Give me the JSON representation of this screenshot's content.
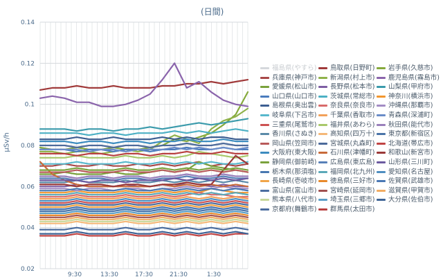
{
  "chart_data": {
    "type": "line",
    "title": "(日間)",
    "ylabel": "μSv/h",
    "ylim": [
      0.02,
      0.14
    ],
    "y_ticks": [
      "0.02",
      "0.04",
      "0.06",
      "0.08",
      "0.1",
      "0.12",
      "0.14"
    ],
    "x_ticks": [
      "9:30",
      "13:30",
      "17:30",
      "21:30",
      "1:30"
    ],
    "legend_placement": "right",
    "grid": true,
    "series": [
      {
        "name": "福島県(やすら)",
        "color": "#bcc3ca",
        "hidden": true,
        "values": []
      },
      {
        "name": "鳥取県(日野町)",
        "color": "#a03a3a",
        "values": [
          0.107,
          0.108,
          0.108,
          0.109,
          0.108,
          0.108,
          0.109,
          0.108,
          0.108,
          0.108,
          0.109,
          0.109,
          0.11,
          0.11,
          0.111,
          0.11,
          0.111,
          0.112
        ]
      },
      {
        "name": "岩手県(久慈市)",
        "color": "#85a93b",
        "values": [
          0.079,
          0.078,
          0.078,
          0.079,
          0.078,
          0.078,
          0.079,
          0.078,
          0.078,
          0.079,
          0.08,
          0.083,
          0.082,
          0.084,
          0.086,
          0.09,
          0.095,
          0.106
        ]
      },
      {
        "name": "兵庫県(神戸市)",
        "color": "#a84848",
        "values": [
          0.07,
          0.07,
          0.071,
          0.07,
          0.07,
          0.071,
          0.07,
          0.07,
          0.071,
          0.07,
          0.071,
          0.07,
          0.071,
          0.072,
          0.07,
          0.071,
          0.07,
          0.071
        ]
      },
      {
        "name": "新潟県(村上市)",
        "color": "#8fb24a",
        "values": [
          0.077,
          0.077,
          0.076,
          0.077,
          0.077,
          0.076,
          0.077,
          0.078,
          0.077,
          0.078,
          0.082,
          0.085,
          0.083,
          0.081,
          0.088,
          0.092,
          0.094,
          0.098
        ]
      },
      {
        "name": "鹿児島県(霧島市)",
        "color": "#8a64ab",
        "values": [
          0.103,
          0.104,
          0.103,
          0.101,
          0.101,
          0.099,
          0.099,
          0.1,
          0.102,
          0.105,
          0.112,
          0.12,
          0.108,
          0.111,
          0.106,
          0.102,
          0.1,
          0.099
        ]
      },
      {
        "name": "愛媛県(松山市)",
        "color": "#7aa23c",
        "values": [
          0.066,
          0.066,
          0.067,
          0.066,
          0.066,
          0.066,
          0.067,
          0.066,
          0.066,
          0.067,
          0.068,
          0.067,
          0.068,
          0.072,
          0.07,
          0.069,
          0.068,
          0.067
        ]
      },
      {
        "name": "長野県(松本市)",
        "color": "#7e5ea3",
        "values": [
          0.06,
          0.06,
          0.06,
          0.061,
          0.06,
          0.06,
          0.06,
          0.061,
          0.06,
          0.06,
          0.061,
          0.06,
          0.062,
          0.061,
          0.06,
          0.061,
          0.06,
          0.06
        ]
      },
      {
        "name": "山梨県(甲府市)",
        "color": "#3a9aab",
        "values": [
          0.088,
          0.088,
          0.088,
          0.087,
          0.088,
          0.088,
          0.087,
          0.088,
          0.088,
          0.089,
          0.088,
          0.089,
          0.09,
          0.091,
          0.09,
          0.091,
          0.092,
          0.093
        ]
      },
      {
        "name": "山口県(山口市)",
        "color": "#4a7bbd",
        "values": [
          0.078,
          0.078,
          0.078,
          0.077,
          0.078,
          0.078,
          0.077,
          0.078,
          0.078,
          0.077,
          0.078,
          0.078,
          0.079,
          0.078,
          0.078,
          0.079,
          0.078,
          0.078
        ]
      },
      {
        "name": "茨城県(常総市)",
        "color": "#4cb0c4",
        "values": [
          0.086,
          0.086,
          0.086,
          0.086,
          0.085,
          0.086,
          0.086,
          0.085,
          0.086,
          0.086,
          0.086,
          0.087,
          0.086,
          0.087,
          0.086,
          0.087,
          0.088,
          0.087
        ]
      },
      {
        "name": "神奈川(横浜市)",
        "color": "#f2962e",
        "values": [
          0.057,
          0.057,
          0.057,
          0.058,
          0.057,
          0.057,
          0.057,
          0.058,
          0.057,
          0.057,
          0.058,
          0.057,
          0.058,
          0.057,
          0.059,
          0.058,
          0.057,
          0.057
        ]
      },
      {
        "name": "島根県(奥出雲)",
        "color": "#3c5e91",
        "values": [
          0.083,
          0.083,
          0.083,
          0.084,
          0.083,
          0.083,
          0.084,
          0.083,
          0.083,
          0.083,
          0.084,
          0.083,
          0.084,
          0.083,
          0.084,
          0.084,
          0.083,
          0.083
        ]
      },
      {
        "name": "奈良県(奈良市)",
        "color": "#d86a6a",
        "values": [
          0.055,
          0.055,
          0.055,
          0.056,
          0.055,
          0.055,
          0.055,
          0.056,
          0.055,
          0.055,
          0.056,
          0.055,
          0.056,
          0.057,
          0.056,
          0.056,
          0.055,
          0.055
        ]
      },
      {
        "name": "沖縄県(那覇市)",
        "color": "#a38cc4",
        "values": [
          0.059,
          0.059,
          0.059,
          0.058,
          0.059,
          0.059,
          0.058,
          0.059,
          0.059,
          0.058,
          0.059,
          0.059,
          0.06,
          0.059,
          0.059,
          0.06,
          0.059,
          0.059
        ]
      },
      {
        "name": "岐阜県(下呂市)",
        "color": "#58b8cc",
        "values": [
          0.071,
          0.071,
          0.071,
          0.072,
          0.071,
          0.071,
          0.071,
          0.072,
          0.071,
          0.071,
          0.072,
          0.071,
          0.072,
          0.071,
          0.072,
          0.071,
          0.071,
          0.072
        ]
      },
      {
        "name": "千葉県(香取市)",
        "color": "#f2a15a",
        "values": [
          0.054,
          0.054,
          0.054,
          0.055,
          0.054,
          0.054,
          0.054,
          0.055,
          0.054,
          0.054,
          0.055,
          0.054,
          0.055,
          0.054,
          0.055,
          0.054,
          0.055,
          0.054
        ]
      },
      {
        "name": "青森県(深浦町)",
        "color": "#6a8cc8",
        "values": [
          0.078,
          0.078,
          0.078,
          0.078,
          0.077,
          0.078,
          0.078,
          0.077,
          0.078,
          0.078,
          0.078,
          0.079,
          0.078,
          0.079,
          0.078,
          0.079,
          0.078,
          0.079
        ]
      },
      {
        "name": "三重県(尾鷲市)",
        "color": "#cc5252",
        "values": [
          0.052,
          0.052,
          0.052,
          0.053,
          0.052,
          0.052,
          0.052,
          0.053,
          0.052,
          0.052,
          0.053,
          0.052,
          0.053,
          0.052,
          0.053,
          0.052,
          0.053,
          0.052
        ]
      },
      {
        "name": "福井県(あわら)",
        "color": "#a8c86a",
        "values": [
          0.074,
          0.074,
          0.074,
          0.075,
          0.074,
          0.074,
          0.074,
          0.075,
          0.074,
          0.074,
          0.075,
          0.074,
          0.075,
          0.077,
          0.076,
          0.075,
          0.074,
          0.075
        ]
      },
      {
        "name": "秋田県(能代市)",
        "color": "#9a80bb",
        "values": [
          0.065,
          0.065,
          0.065,
          0.064,
          0.065,
          0.065,
          0.064,
          0.065,
          0.065,
          0.064,
          0.065,
          0.065,
          0.066,
          0.065,
          0.065,
          0.066,
          0.065,
          0.065
        ]
      },
      {
        "name": "香川県(さぬき)",
        "color": "#5a8aa8",
        "values": [
          0.062,
          0.062,
          0.062,
          0.063,
          0.062,
          0.062,
          0.062,
          0.063,
          0.062,
          0.062,
          0.063,
          0.062,
          0.063,
          0.062,
          0.063,
          0.062,
          0.063,
          0.062
        ]
      },
      {
        "name": "高知県(四万十)",
        "color": "#f5b878",
        "values": [
          0.042,
          0.042,
          0.042,
          0.043,
          0.042,
          0.042,
          0.042,
          0.043,
          0.042,
          0.042,
          0.043,
          0.042,
          0.043,
          0.042,
          0.043,
          0.042,
          0.043,
          0.042
        ]
      },
      {
        "name": "東京都(新宿区)",
        "color": "#4a74a8",
        "values": [
          0.048,
          0.048,
          0.048,
          0.049,
          0.048,
          0.048,
          0.048,
          0.049,
          0.048,
          0.048,
          0.049,
          0.048,
          0.049,
          0.048,
          0.049,
          0.048,
          0.049,
          0.048
        ]
      },
      {
        "name": "岡山県(笠岡市)",
        "color": "#b85a5a",
        "values": [
          0.067,
          0.067,
          0.067,
          0.068,
          0.067,
          0.067,
          0.067,
          0.068,
          0.067,
          0.067,
          0.068,
          0.067,
          0.068,
          0.067,
          0.068,
          0.067,
          0.068,
          0.067
        ]
      },
      {
        "name": "宮城県(丸森町)",
        "color": "#4c6a9a",
        "values": [
          0.08,
          0.08,
          0.08,
          0.079,
          0.08,
          0.08,
          0.079,
          0.08,
          0.08,
          0.079,
          0.08,
          0.08,
          0.081,
          0.08,
          0.08,
          0.081,
          0.08,
          0.08
        ]
      },
      {
        "name": "北海道(帯広市)",
        "color": "#c04444",
        "values": [
          0.036,
          0.036,
          0.036,
          0.037,
          0.036,
          0.036,
          0.036,
          0.037,
          0.036,
          0.036,
          0.037,
          0.036,
          0.037,
          0.036,
          0.037,
          0.036,
          0.037,
          0.037
        ]
      },
      {
        "name": "大阪府(東大阪)",
        "color": "#3c8cbf",
        "values": [
          0.082,
          0.082,
          0.082,
          0.081,
          0.082,
          0.082,
          0.081,
          0.082,
          0.082,
          0.081,
          0.082,
          0.082,
          0.083,
          0.082,
          0.082,
          0.083,
          0.082,
          0.082
        ]
      },
      {
        "name": "石川県(津幡町)",
        "color": "#c86a3a",
        "values": [
          0.072,
          0.066,
          0.063,
          0.061,
          0.06,
          0.06,
          0.06,
          0.06,
          0.06,
          0.06,
          0.061,
          0.06,
          0.061,
          0.06,
          0.061,
          0.06,
          0.061,
          0.06
        ]
      },
      {
        "name": "和歌山(新宮市)",
        "color": "#9a3838",
        "values": [
          0.061,
          0.061,
          0.061,
          0.06,
          0.061,
          0.061,
          0.06,
          0.061,
          0.061,
          0.06,
          0.061,
          0.061,
          0.062,
          0.061,
          0.061,
          0.068,
          0.075,
          0.071
        ]
      },
      {
        "name": "静岡県(御前崎)",
        "color": "#7aa23c",
        "values": [
          0.068,
          0.068,
          0.068,
          0.069,
          0.068,
          0.068,
          0.068,
          0.069,
          0.068,
          0.068,
          0.069,
          0.068,
          0.069,
          0.068,
          0.069,
          0.068,
          0.069,
          0.068
        ]
      },
      {
        "name": "広島県(東広島)",
        "color": "#5880b8",
        "values": [
          0.064,
          0.064,
          0.064,
          0.063,
          0.064,
          0.064,
          0.063,
          0.064,
          0.064,
          0.063,
          0.064,
          0.064,
          0.065,
          0.064,
          0.064,
          0.065,
          0.064,
          0.064
        ]
      },
      {
        "name": "山形県(三川町)",
        "color": "#6c5aa0",
        "values": [
          0.063,
          0.063,
          0.063,
          0.063,
          0.062,
          0.063,
          0.063,
          0.062,
          0.063,
          0.063,
          0.063,
          0.064,
          0.063,
          0.064,
          0.063,
          0.064,
          0.063,
          0.064
        ]
      },
      {
        "name": "栃木県(那須塩)",
        "color": "#4878b0",
        "values": [
          0.058,
          0.058,
          0.058,
          0.059,
          0.058,
          0.058,
          0.058,
          0.059,
          0.058,
          0.058,
          0.059,
          0.058,
          0.059,
          0.058,
          0.059,
          0.058,
          0.059,
          0.058
        ]
      },
      {
        "name": "福岡県(北九州)",
        "color": "#5aa8b8",
        "values": [
          0.056,
          0.056,
          0.056,
          0.057,
          0.056,
          0.056,
          0.056,
          0.057,
          0.056,
          0.056,
          0.057,
          0.056,
          0.057,
          0.056,
          0.057,
          0.056,
          0.057,
          0.056
        ]
      },
      {
        "name": "愛知県(名古屋)",
        "color": "#4e8ec0",
        "values": [
          0.053,
          0.053,
          0.053,
          0.054,
          0.053,
          0.053,
          0.053,
          0.054,
          0.053,
          0.053,
          0.054,
          0.053,
          0.054,
          0.053,
          0.054,
          0.053,
          0.054,
          0.053
        ]
      },
      {
        "name": "長崎県(壱岐市)",
        "color": "#f0a448",
        "values": [
          0.05,
          0.05,
          0.05,
          0.051,
          0.05,
          0.05,
          0.05,
          0.051,
          0.05,
          0.05,
          0.051,
          0.05,
          0.051,
          0.05,
          0.051,
          0.05,
          0.051,
          0.05
        ]
      },
      {
        "name": "徳島県(三好市)",
        "color": "#e8892c",
        "values": [
          0.046,
          0.046,
          0.046,
          0.047,
          0.046,
          0.046,
          0.046,
          0.047,
          0.046,
          0.046,
          0.047,
          0.046,
          0.047,
          0.046,
          0.047,
          0.046,
          0.047,
          0.046
        ]
      },
      {
        "name": "佐賀県(武雄市)",
        "color": "#4a78b4",
        "values": [
          0.049,
          0.049,
          0.049,
          0.05,
          0.049,
          0.049,
          0.049,
          0.05,
          0.049,
          0.049,
          0.05,
          0.049,
          0.05,
          0.049,
          0.05,
          0.049,
          0.05,
          0.049
        ]
      },
      {
        "name": "富山県(富山市)",
        "color": "#4c6ea0",
        "values": [
          0.051,
          0.051,
          0.051,
          0.052,
          0.051,
          0.051,
          0.051,
          0.052,
          0.051,
          0.051,
          0.052,
          0.051,
          0.052,
          0.051,
          0.052,
          0.051,
          0.052,
          0.051
        ]
      },
      {
        "name": "宮崎県(延岡市)",
        "color": "#a05050",
        "values": [
          0.045,
          0.045,
          0.045,
          0.046,
          0.045,
          0.045,
          0.045,
          0.046,
          0.045,
          0.045,
          0.046,
          0.045,
          0.046,
          0.045,
          0.046,
          0.045,
          0.046,
          0.045
        ]
      },
      {
        "name": "滋賀県(甲賀市)",
        "color": "#f2ac62",
        "values": [
          0.044,
          0.044,
          0.044,
          0.045,
          0.044,
          0.044,
          0.044,
          0.045,
          0.044,
          0.044,
          0.045,
          0.044,
          0.045,
          0.044,
          0.045,
          0.044,
          0.045,
          0.044
        ]
      },
      {
        "name": "熊本県(八代市)",
        "color": "#c8d89a",
        "values": [
          0.043,
          0.043,
          0.043,
          0.044,
          0.043,
          0.043,
          0.043,
          0.044,
          0.043,
          0.043,
          0.044,
          0.043,
          0.044,
          0.043,
          0.044,
          0.043,
          0.044,
          0.043
        ]
      },
      {
        "name": "埼玉県(三郷市)",
        "color": "#5a9ec8",
        "values": [
          0.047,
          0.047,
          0.047,
          0.048,
          0.047,
          0.047,
          0.047,
          0.048,
          0.047,
          0.047,
          0.048,
          0.047,
          0.048,
          0.047,
          0.048,
          0.047,
          0.048,
          0.047
        ]
      },
      {
        "name": "大分県(佐伯市)",
        "color": "#3e6496",
        "values": [
          0.037,
          0.037,
          0.037,
          0.038,
          0.037,
          0.037,
          0.037,
          0.038,
          0.037,
          0.037,
          0.038,
          0.037,
          0.038,
          0.037,
          0.038,
          0.037,
          0.038,
          0.037
        ]
      },
      {
        "name": "京都府(舞鶴市)",
        "color": "#4a6c9e",
        "values": [
          0.039,
          0.039,
          0.039,
          0.04,
          0.039,
          0.039,
          0.039,
          0.04,
          0.039,
          0.039,
          0.04,
          0.039,
          0.04,
          0.039,
          0.04,
          0.039,
          0.04,
          0.039
        ]
      },
      {
        "name": "群馬県(太田市)",
        "color": "#b84040",
        "values": [
          0.076,
          0.076,
          0.076,
          0.075,
          0.076,
          0.076,
          0.075,
          0.076,
          0.076,
          0.075,
          0.076,
          0.076,
          0.077,
          0.076,
          0.076,
          0.077,
          0.076,
          0.076
        ]
      }
    ]
  }
}
